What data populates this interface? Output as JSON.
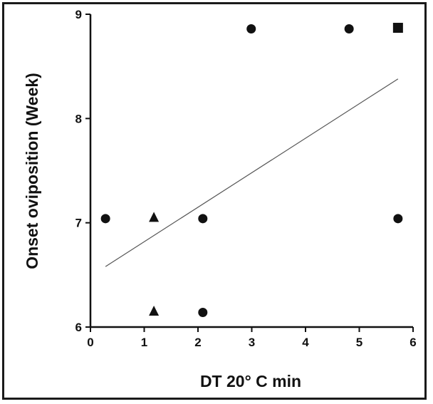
{
  "chart_data": {
    "type": "scatter",
    "xlabel": "DT 20° C min",
    "ylabel": "Onset oviposition (Week)",
    "xlim": [
      0,
      6
    ],
    "ylim": [
      6,
      9
    ],
    "x_ticks": [
      "0",
      "1",
      "2",
      "3",
      "4",
      "5",
      "6"
    ],
    "y_ticks": [
      "6",
      "7",
      "8",
      "9"
    ],
    "grid": false,
    "points": [
      {
        "x": 0.28,
        "y": 7.04,
        "marker": "circle"
      },
      {
        "x": 1.18,
        "y": 7.05,
        "marker": "triangle"
      },
      {
        "x": 1.18,
        "y": 6.15,
        "marker": "triangle"
      },
      {
        "x": 2.09,
        "y": 7.04,
        "marker": "circle"
      },
      {
        "x": 2.09,
        "y": 6.14,
        "marker": "circle"
      },
      {
        "x": 2.99,
        "y": 8.86,
        "marker": "circle"
      },
      {
        "x": 4.81,
        "y": 8.86,
        "marker": "circle"
      },
      {
        "x": 5.72,
        "y": 7.04,
        "marker": "circle"
      },
      {
        "x": 5.72,
        "y": 8.87,
        "marker": "square"
      }
    ],
    "trend_line": {
      "x": [
        0.28,
        5.72
      ],
      "y": [
        6.58,
        8.38
      ]
    },
    "colors": {
      "marker": "#111111",
      "trend_line": "#555555",
      "axis": "#111111"
    }
  }
}
